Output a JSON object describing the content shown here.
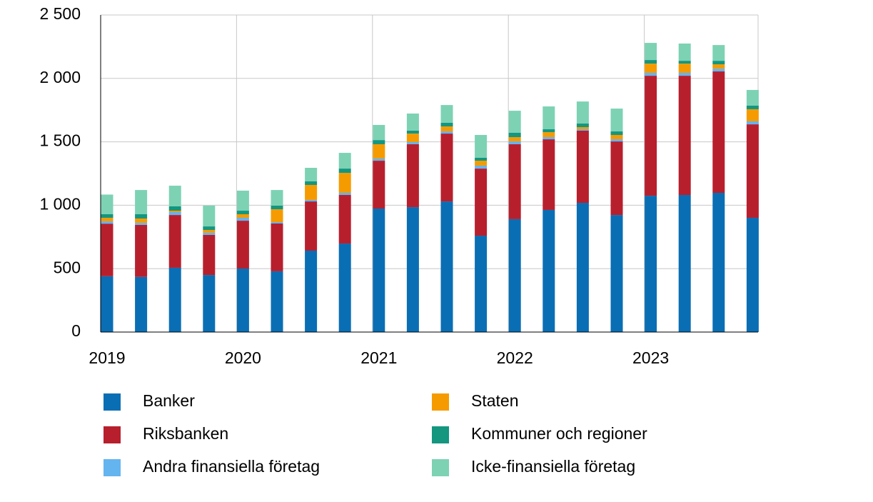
{
  "chart_data": {
    "type": "stacked_bar",
    "categories": [
      "2019",
      null,
      null,
      null,
      "2020",
      null,
      null,
      null,
      "2021",
      null,
      null,
      null,
      "2022",
      null,
      null,
      null,
      "2023",
      null,
      null,
      null
    ],
    "series": [
      {
        "name": "Banker",
        "color": "#0a6eb4",
        "values": [
          440,
          435,
          507,
          450,
          501,
          479,
          642,
          698,
          974,
          985,
          1030,
          760,
          890,
          963,
          1019,
          923,
          1075,
          1081,
          1098,
          901
        ]
      },
      {
        "name": "Riksbanken",
        "color": "#b81f2d",
        "values": [
          415,
          410,
          416,
          316,
          377,
          377,
          388,
          383,
          377,
          496,
          535,
          529,
          591,
          557,
          569,
          580,
          946,
          940,
          957,
          737
        ]
      },
      {
        "name": "Andra finansiella företag",
        "color": "#64b4f0",
        "values": [
          18,
          16,
          23,
          17,
          23,
          11,
          12,
          17,
          17,
          17,
          17,
          23,
          22,
          17,
          11,
          17,
          23,
          23,
          22,
          23
        ]
      },
      {
        "name": "Staten",
        "color": "#f59b00",
        "values": [
          28,
          34,
          11,
          22,
          28,
          101,
          118,
          157,
          113,
          67,
          39,
          39,
          34,
          39,
          17,
          34,
          73,
          73,
          34,
          96
        ]
      },
      {
        "name": "Kommuner och regioner",
        "color": "#14967f",
        "values": [
          28,
          34,
          34,
          28,
          28,
          29,
          28,
          34,
          33,
          23,
          29,
          23,
          34,
          23,
          28,
          28,
          28,
          22,
          28,
          28
        ]
      },
      {
        "name": "Icke-finansiella företag",
        "color": "#7dd2b4",
        "values": [
          155,
          191,
          163,
          164,
          158,
          123,
          107,
          124,
          119,
          135,
          140,
          180,
          174,
          180,
          174,
          180,
          135,
          136,
          124,
          124
        ]
      }
    ],
    "ylim": [
      0,
      2500
    ],
    "yticks": [
      0,
      500,
      {
        "value": 1000,
        "label": "1 000"
      },
      {
        "value": 1500,
        "label": "1 500"
      },
      {
        "value": 2000,
        "label": "2 000"
      },
      {
        "value": 2500,
        "label": "2 500"
      }
    ],
    "grid": true
  }
}
